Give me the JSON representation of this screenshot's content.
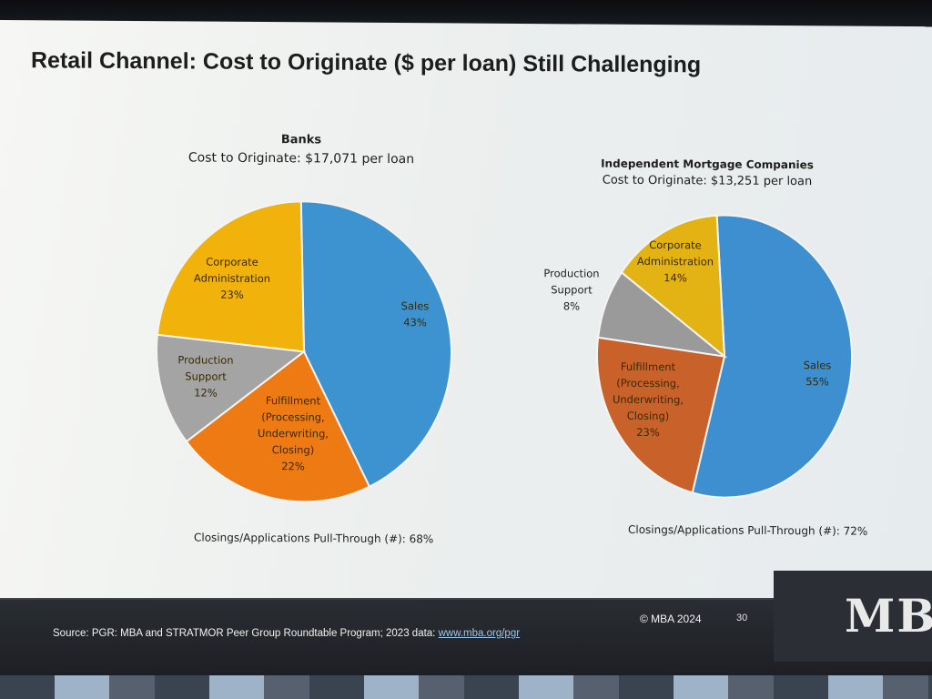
{
  "slide": {
    "title": "Retail Channel: Cost to Originate ($ per loan) Still Challenging"
  },
  "chart_data": [
    {
      "type": "pie",
      "title": "Banks",
      "subtitle": "Cost to Originate: $17,071 per loan",
      "slices": [
        {
          "label": "Sales",
          "value": 43,
          "pct_text": "43%",
          "color": "#3d92d0"
        },
        {
          "label": "Fulfillment (Processing, Underwriting, Closing)",
          "value": 22,
          "pct_text": "22%",
          "color": "#ee7a14"
        },
        {
          "label": "Production Support",
          "value": 12,
          "pct_text": "12%",
          "color": "#a4a4a4"
        },
        {
          "label": "Corporate Administration",
          "value": 23,
          "pct_text": "23%",
          "color": "#f0b20b"
        }
      ],
      "footnote": "Closings/Applications Pull-Through (#): 68%"
    },
    {
      "type": "pie",
      "title": "Independent Mortgage Companies",
      "subtitle": "Cost to Originate: $13,251 per loan",
      "slices": [
        {
          "label": "Sales",
          "value": 55,
          "pct_text": "55%",
          "color": "#3d8fd0"
        },
        {
          "label": "Fulfillment (Processing, Underwriting, Closing)",
          "value": 23,
          "pct_text": "23%",
          "color": "#c8622a"
        },
        {
          "label": "Production Support",
          "value": 8,
          "pct_text": "8%",
          "color": "#9a9a9a"
        },
        {
          "label": "Corporate Administration",
          "value": 14,
          "pct_text": "14%",
          "color": "#e3b313"
        }
      ],
      "footnote": "Closings/Applications Pull-Through (#): 72%"
    }
  ],
  "footer": {
    "source_prefix": "Source: PGR: MBA and STRATMOR Peer Group Roundtable Program; 2023 data:",
    "source_link": "www.mba.org/pgr",
    "copyright": "© MBA 2024",
    "page_number": "30",
    "logo_text": "MB"
  }
}
